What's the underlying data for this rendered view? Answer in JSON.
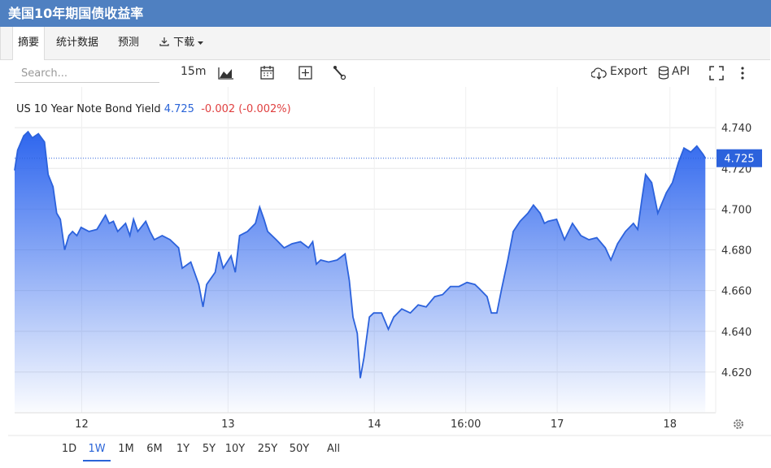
{
  "header": {
    "title": "美国10年期国债收益率"
  },
  "tabs": [
    "摘要",
    "统计数据",
    "预测",
    "下载"
  ],
  "toolbar": {
    "search": "Search...",
    "interval": "15m",
    "export": "Export",
    "api": "API"
  },
  "quote": {
    "change": "-0.002",
    "change_pct": "(-0.002%)"
  },
  "ranges": [
    "1D",
    "1W",
    "1M",
    "6M",
    "1Y",
    "5Y",
    "10Y",
    "25Y",
    "50Y",
    "All"
  ],
  "chart_data": {
    "type": "area",
    "series": [
      {
        "name": "US 10 Year Note Bond Yield",
        "color": "#2c62dc",
        "x": [
          -11,
          -10.5,
          -9.5,
          -8.8,
          -8.1,
          -7.1,
          -6.1,
          -5.5,
          -4.7,
          -4.1,
          -3.5,
          -2.8,
          -2.1,
          -1.5,
          -0.8,
          -0.1,
          1.2,
          2.5,
          3.9,
          4.5,
          5.2,
          5.9,
          7.2,
          7.9,
          8.5,
          9.2,
          10.5,
          11.2,
          11.9,
          13.2,
          14.5,
          15.9,
          16.5,
          17.9,
          19.2,
          19.9,
          20.5,
          21.9,
          22.5,
          23.2,
          24.5,
          25.2,
          25.9,
          27.2,
          28.5,
          29.2,
          29.9,
          30.5,
          31.9,
          33.2,
          34.5,
          35.9,
          37.2,
          37.9,
          38.5,
          39.2,
          40.5,
          41.9,
          43.2,
          43.9,
          44.5,
          45.2,
          45.7,
          46.3,
          47.2,
          47.9,
          49.2,
          50.3,
          51.2,
          52.5,
          53.9,
          55.2,
          56.5,
          57.9,
          59.2,
          60.5,
          61.9,
          63.2,
          64.5,
          65.2,
          66.5,
          67.2,
          68.1,
          68.9,
          69.9,
          70.8,
          71.9,
          73.2,
          74.1,
          75.2,
          75.9,
          76.5,
          77.9,
          79.2,
          80.5,
          81.9,
          83.2,
          84.5,
          85.9,
          86.8,
          87.9,
          89.2,
          90.5,
          91.2,
          91.9,
          92.5,
          93.5,
          94.5,
          95.9,
          96.9,
          97.9,
          98.8,
          99.9,
          100.9,
          101.9,
          102.3
        ],
        "values": [
          4.719,
          4.729,
          4.736,
          4.738,
          4.735,
          4.737,
          4.733,
          4.717,
          4.711,
          4.698,
          4.695,
          4.68,
          4.687,
          4.689,
          4.687,
          4.691,
          4.689,
          4.69,
          4.697,
          4.693,
          4.694,
          4.689,
          4.693,
          4.687,
          4.695,
          4.689,
          4.694,
          4.689,
          4.685,
          4.687,
          4.685,
          4.681,
          4.671,
          4.674,
          4.663,
          4.652,
          4.663,
          4.669,
          4.679,
          4.671,
          4.677,
          4.669,
          4.687,
          4.689,
          4.693,
          4.701,
          4.695,
          4.689,
          4.685,
          4.681,
          4.683,
          4.684,
          4.681,
          4.684,
          4.673,
          4.675,
          4.674,
          4.675,
          4.678,
          4.665,
          4.647,
          4.639,
          4.617,
          4.627,
          4.647,
          4.649,
          4.649,
          4.641,
          4.647,
          4.651,
          4.649,
          4.653,
          4.652,
          4.657,
          4.658,
          4.662,
          4.662,
          4.664,
          4.663,
          4.661,
          4.657,
          4.649,
          4.649,
          4.661,
          4.675,
          4.689,
          4.694,
          4.698,
          4.702,
          4.698,
          4.693,
          4.694,
          4.695,
          4.685,
          4.693,
          4.687,
          4.685,
          4.686,
          4.681,
          4.675,
          4.683,
          4.689,
          4.693,
          4.69,
          4.705,
          4.717,
          4.713,
          4.698,
          4.708,
          4.713,
          4.723,
          4.73,
          4.728,
          4.731,
          4.727,
          4.725
        ]
      }
    ],
    "last_value": 4.725,
    "xlim": [
      -11,
      104
    ],
    "xticks": [
      {
        "value": 0,
        "label": "12"
      },
      {
        "value": 24,
        "label": "13"
      },
      {
        "value": 48,
        "label": "14"
      },
      {
        "value": 63,
        "label": "16:00"
      },
      {
        "value": 78,
        "label": "17"
      },
      {
        "value": 96.5,
        "label": "18"
      }
    ],
    "ylim": [
      4.6,
      4.76
    ],
    "yticks": [
      {
        "value": 4.62,
        "label": "4.620"
      },
      {
        "value": 4.64,
        "label": "4.640"
      },
      {
        "value": 4.66,
        "label": "4.660"
      },
      {
        "value": 4.68,
        "label": "4.680"
      },
      {
        "value": 4.7,
        "label": "4.700"
      },
      {
        "value": 4.72,
        "label": "4.720"
      },
      {
        "value": 4.74,
        "label": "4.740"
      }
    ],
    "grid": true
  }
}
